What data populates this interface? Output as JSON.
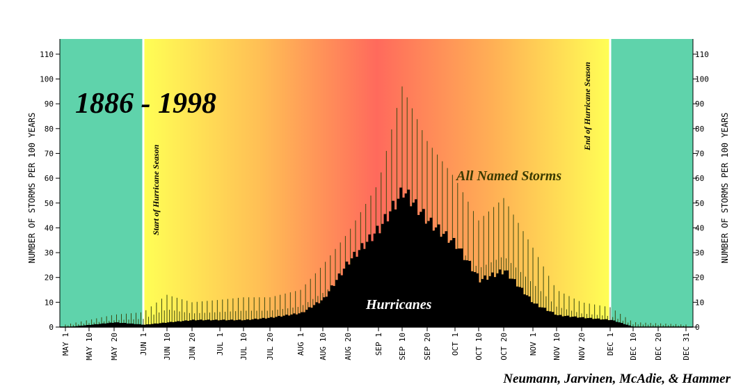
{
  "chart_data": {
    "type": "bar",
    "title": "1886 - 1998",
    "ylabel_left": "NUMBER OF STORMS PER 100 YEARS",
    "ylabel_right": "NUMBER OF STORMS PER 100 YEARS",
    "ylim": [
      0,
      115
    ],
    "y_ticks": [
      0,
      10,
      20,
      30,
      40,
      50,
      60,
      70,
      80,
      90,
      100,
      110
    ],
    "y_tick_labels": [
      "0",
      "10",
      "20",
      "30",
      "40",
      "50",
      "60",
      "70",
      "80",
      "90",
      "100",
      "110"
    ],
    "x_tick_labels": [
      "MAY 1",
      "MAY 10",
      "MAY 20",
      "JUN 1",
      "JUN 10",
      "JUN 20",
      "JUL 1",
      "JUL 10",
      "JUL 20",
      "AUG 1",
      "AUG 10",
      "AUG 20",
      "SEP 1",
      "SEP 10",
      "SEP 20",
      "OCT 1",
      "OCT 10",
      "OCT 20",
      "NOV 1",
      "NOV 10",
      "NOV 20",
      "DEC 1",
      "DEC 10",
      "DEC 20",
      "DEC 31"
    ],
    "season": {
      "start_label": "Start of Hurricane Season",
      "end_label": "End of Hurricane Season"
    },
    "series": [
      {
        "name": "All Named Storms",
        "color": "#3a4a10",
        "x_anchor_dates": [
          "MAY 1",
          "MAY 20",
          "JUN 1",
          "JUN 10",
          "JUN 20",
          "JUL 1",
          "JUL 10",
          "JUL 20",
          "AUG 1",
          "AUG 10",
          "AUG 20",
          "SEP 1",
          "SEP 10",
          "SEP 20",
          "OCT 1",
          "OCT 10",
          "OCT 20",
          "NOV 1",
          "NOV 10",
          "NOV 20",
          "DEC 1",
          "DEC 10",
          "DEC 31"
        ],
        "values": [
          1,
          5,
          6,
          13,
          10,
          11,
          12,
          12,
          15,
          25,
          38,
          58,
          97,
          75,
          60,
          43,
          52,
          32,
          15,
          10,
          8,
          2,
          1
        ]
      },
      {
        "name": "Hurricanes",
        "color": "#000000",
        "x_anchor_dates": [
          "MAY 1",
          "MAY 20",
          "JUN 1",
          "JUN 10",
          "JUN 20",
          "JUL 1",
          "JUL 10",
          "JUL 20",
          "AUG 1",
          "AUG 10",
          "AUG 20",
          "SEP 1",
          "SEP 10",
          "SEP 20",
          "OCT 1",
          "OCT 10",
          "OCT 20",
          "NOV 1",
          "NOV 10",
          "NOV 20",
          "DEC 1",
          "DEC 10",
          "DEC 31"
        ],
        "values": [
          0,
          2,
          1,
          2,
          3,
          3,
          3,
          4,
          6,
          12,
          28,
          42,
          58,
          45,
          35,
          20,
          24,
          10,
          5,
          4,
          3,
          0,
          0
        ]
      }
    ],
    "colors": {
      "off_season": "#5fd3ab",
      "season_start": "#ffff55",
      "season_peak": "#ff6a5c",
      "season_line": "#ffffff"
    },
    "credit": "Neumann, Jarvinen, McAdie, & Hammer"
  }
}
